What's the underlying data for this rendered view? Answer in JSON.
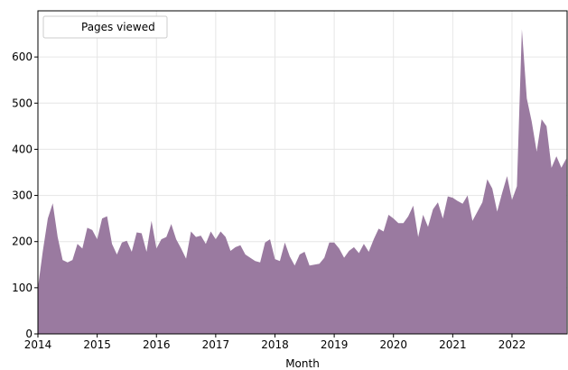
{
  "chart_data": {
    "type": "area",
    "xlabel": "Month",
    "x": [
      2014,
      2014.083,
      2014.167,
      2014.25,
      2014.333,
      2014.417,
      2014.5,
      2014.583,
      2014.667,
      2014.75,
      2014.833,
      2014.917,
      2015,
      2015.083,
      2015.167,
      2015.25,
      2015.333,
      2015.417,
      2015.5,
      2015.583,
      2015.667,
      2015.75,
      2015.833,
      2015.917,
      2016,
      2016.083,
      2016.167,
      2016.25,
      2016.333,
      2016.417,
      2016.5,
      2016.583,
      2016.667,
      2016.75,
      2016.833,
      2016.917,
      2017,
      2017.083,
      2017.167,
      2017.25,
      2017.333,
      2017.417,
      2017.5,
      2017.583,
      2017.667,
      2017.75,
      2017.833,
      2017.917,
      2018,
      2018.083,
      2018.167,
      2018.25,
      2018.333,
      2018.417,
      2018.5,
      2018.583,
      2018.667,
      2018.75,
      2018.833,
      2018.917,
      2019,
      2019.083,
      2019.167,
      2019.25,
      2019.333,
      2019.417,
      2019.5,
      2019.583,
      2019.667,
      2019.75,
      2019.833,
      2019.917,
      2020,
      2020.083,
      2020.167,
      2020.25,
      2020.333,
      2020.417,
      2020.5,
      2020.583,
      2020.667,
      2020.75,
      2020.833,
      2020.917,
      2021,
      2021.083,
      2021.167,
      2021.25,
      2021.333,
      2021.417,
      2021.5,
      2021.583,
      2021.667,
      2021.75,
      2021.833,
      2021.917,
      2022,
      2022.083,
      2022.167,
      2022.25,
      2022.333,
      2022.417,
      2022.5,
      2022.583,
      2022.667,
      2022.75,
      2022.833,
      2022.917
    ],
    "series": [
      {
        "name": "Pages viewed",
        "color": "#9a7aa0",
        "values": [
          100,
          180,
          250,
          283,
          210,
          160,
          155,
          160,
          195,
          185,
          230,
          225,
          205,
          250,
          255,
          195,
          172,
          198,
          202,
          178,
          220,
          218,
          178,
          245,
          185,
          205,
          210,
          238,
          205,
          185,
          163,
          222,
          210,
          213,
          195,
          222,
          205,
          222,
          210,
          180,
          188,
          192,
          172,
          165,
          158,
          155,
          198,
          205,
          162,
          158,
          198,
          168,
          148,
          172,
          178,
          148,
          150,
          152,
          165,
          198,
          198,
          185,
          165,
          180,
          188,
          175,
          195,
          178,
          205,
          228,
          222,
          258,
          250,
          240,
          240,
          255,
          278,
          210,
          258,
          232,
          270,
          285,
          250,
          298,
          295,
          288,
          282,
          300,
          245,
          265,
          285,
          335,
          315,
          265,
          305,
          342,
          290,
          320,
          660,
          510,
          460,
          395,
          465,
          450,
          360,
          385,
          360,
          380
        ]
      }
    ],
    "xlim": [
      2014,
      2022.93
    ],
    "xticks": [
      2014,
      2015,
      2016,
      2017,
      2018,
      2019,
      2020,
      2021,
      2022
    ],
    "ylim": [
      0,
      700
    ],
    "yticks": [
      0,
      100,
      200,
      300,
      400,
      500,
      600
    ],
    "grid": true,
    "legend": "upper left"
  }
}
